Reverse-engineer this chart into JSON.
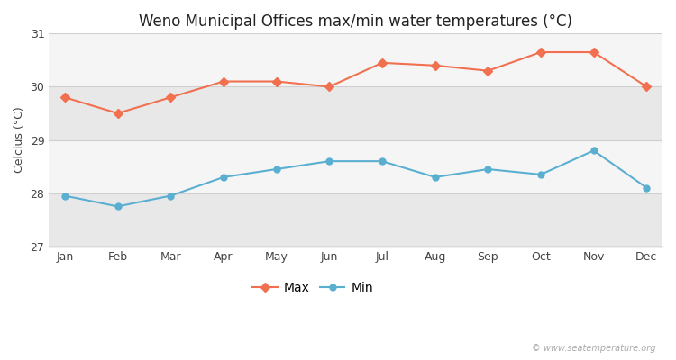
{
  "title": "Weno Municipal Offices max/min water temperatures (°C)",
  "ylabel": "Celcius (°C)",
  "months": [
    "Jan",
    "Feb",
    "Mar",
    "Apr",
    "May",
    "Jun",
    "Jul",
    "Aug",
    "Sep",
    "Oct",
    "Nov",
    "Dec"
  ],
  "max_temps": [
    29.8,
    29.5,
    29.8,
    30.1,
    30.1,
    30.0,
    30.45,
    30.4,
    30.3,
    30.65,
    30.65,
    30.0
  ],
  "min_temps": [
    27.95,
    27.75,
    27.95,
    28.3,
    28.45,
    28.6,
    28.6,
    28.3,
    28.45,
    28.35,
    28.8,
    28.1
  ],
  "max_color": "#f07050",
  "min_color": "#5aafd0",
  "fig_bg_color": "#ffffff",
  "band_colors": [
    "#e8e8e8",
    "#f5f5f5"
  ],
  "gridline_color": "#d0d0d0",
  "ylim": [
    27.0,
    31.0
  ],
  "yticks": [
    27,
    28,
    29,
    30,
    31
  ],
  "legend_labels": [
    "Max",
    "Min"
  ],
  "watermark": "© www.seatemperature.org",
  "title_fontsize": 12,
  "axis_label_fontsize": 9,
  "tick_fontsize": 9,
  "watermark_fontsize": 7,
  "max_marker": "D",
  "min_marker": "o",
  "marker_size": 5,
  "linewidth": 1.5
}
